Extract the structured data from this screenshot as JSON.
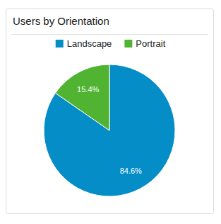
{
  "chart_data": {
    "type": "pie",
    "title": "Users by Orientation",
    "categories": [
      "Landscape",
      "Portrait"
    ],
    "values": [
      84.6,
      15.4
    ],
    "value_labels": [
      "84.6%",
      "15.4%"
    ],
    "colors": [
      "#058dc7",
      "#50b432"
    ],
    "data_labels": true,
    "legend": "top"
  }
}
